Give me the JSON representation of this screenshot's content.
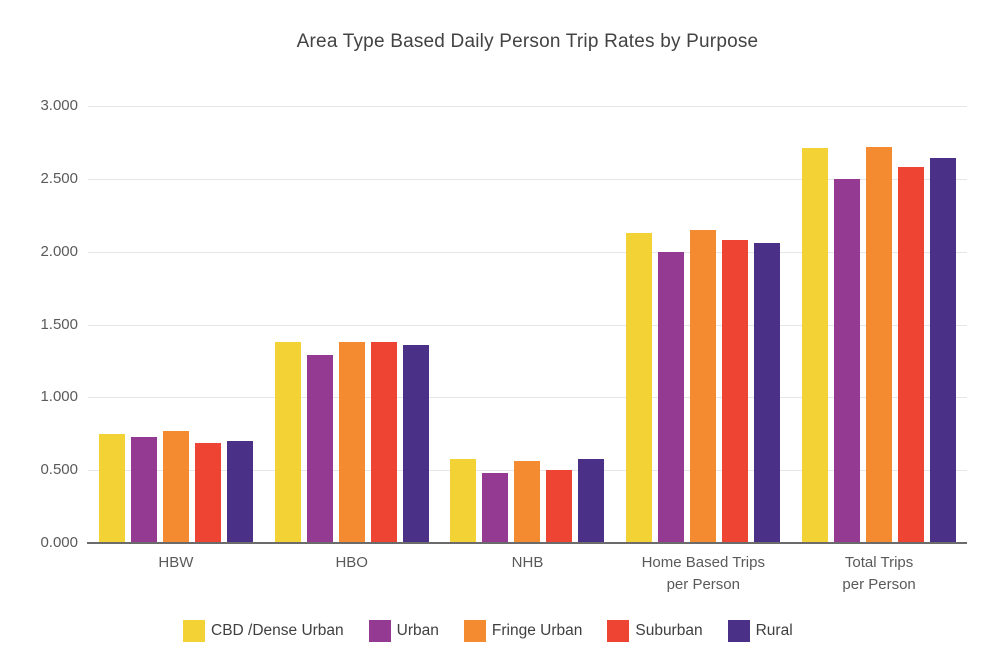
{
  "title": "Area Type Based Daily Person Trip Rates by Purpose",
  "palette": {
    "cbd_dense_urban": "#F2D235",
    "urban": "#943A92",
    "fringe_urban": "#F58B31",
    "suburban": "#EE4434",
    "rural": "#4B3087",
    "gridline": "#e6e6e6",
    "axis_line": "#6b6b6b",
    "axis_text": "#5a5a5a",
    "title_text": "#434343"
  },
  "chart_data": {
    "type": "bar",
    "title": "Area Type Based Daily Person Trip Rates by Purpose",
    "categories": [
      "HBW",
      "HBO",
      "NHB",
      "Home Based Trips\nper Person",
      "Total Trips\nper Person"
    ],
    "series": [
      {
        "name": "CBD /Dense Urban",
        "color": "#F2D235",
        "values": [
          0.75,
          1.38,
          0.58,
          2.13,
          2.71
        ]
      },
      {
        "name": "Urban",
        "color": "#943A92",
        "values": [
          0.73,
          1.29,
          0.48,
          2.0,
          2.5
        ]
      },
      {
        "name": "Fringe Urban",
        "color": "#F58B31",
        "values": [
          0.77,
          1.38,
          0.56,
          2.15,
          2.72
        ]
      },
      {
        "name": "Suburban",
        "color": "#EE4434",
        "values": [
          0.69,
          1.38,
          0.5,
          2.08,
          2.58
        ]
      },
      {
        "name": "Rural",
        "color": "#4B3087",
        "values": [
          0.7,
          1.36,
          0.58,
          2.06,
          2.64
        ]
      }
    ],
    "xlabel": "",
    "ylabel": "",
    "ylim": [
      0,
      3
    ],
    "yticks": [
      {
        "value": 0.0,
        "label": "0.000"
      },
      {
        "value": 0.5,
        "label": "0.500"
      },
      {
        "value": 1.0,
        "label": "1.000"
      },
      {
        "value": 1.5,
        "label": "1.500"
      },
      {
        "value": 2.0,
        "label": "2.000"
      },
      {
        "value": 2.5,
        "label": "2.500"
      },
      {
        "value": 3.0,
        "label": "3.000"
      }
    ],
    "grid": true,
    "legend_position": "bottom"
  }
}
